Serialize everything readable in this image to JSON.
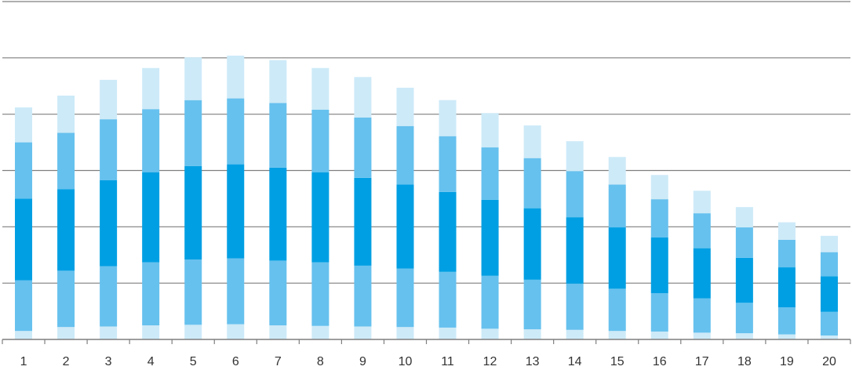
{
  "chart_data": {
    "type": "bar",
    "stacked": true,
    "categories": [
      "1",
      "2",
      "3",
      "4",
      "5",
      "6",
      "7",
      "8",
      "9",
      "10",
      "11",
      "12",
      "13",
      "14",
      "15",
      "16",
      "17",
      "18",
      "19",
      "20"
    ],
    "ylim": [
      0,
      6
    ],
    "grid": true,
    "series": [
      {
        "values": [
          0.15,
          0.22,
          0.23,
          0.25,
          0.26,
          0.27,
          0.25,
          0.24,
          0.23,
          0.22,
          0.21,
          0.19,
          0.18,
          0.17,
          0.15,
          0.14,
          0.12,
          0.11,
          0.09,
          0.07
        ],
        "color": "#cdeaf8"
      },
      {
        "values": [
          0.9,
          1.0,
          1.07,
          1.12,
          1.16,
          1.17,
          1.15,
          1.13,
          1.08,
          1.04,
          0.99,
          0.94,
          0.88,
          0.82,
          0.75,
          0.68,
          0.61,
          0.54,
          0.48,
          0.42
        ],
        "color": "#66c1ee"
      },
      {
        "values": [
          1.45,
          1.45,
          1.53,
          1.6,
          1.66,
          1.67,
          1.65,
          1.6,
          1.56,
          1.49,
          1.42,
          1.35,
          1.27,
          1.18,
          1.09,
          0.99,
          0.89,
          0.8,
          0.71,
          0.63
        ],
        "color": "#009fe3"
      },
      {
        "values": [
          1.0,
          1.0,
          1.08,
          1.12,
          1.17,
          1.17,
          1.15,
          1.11,
          1.07,
          1.04,
          0.99,
          0.93,
          0.89,
          0.82,
          0.76,
          0.68,
          0.62,
          0.54,
          0.49,
          0.43
        ],
        "color": "#66c1ee"
      },
      {
        "values": [
          0.62,
          0.66,
          0.7,
          0.73,
          0.76,
          0.76,
          0.76,
          0.74,
          0.72,
          0.68,
          0.64,
          0.61,
          0.58,
          0.53,
          0.49,
          0.43,
          0.4,
          0.36,
          0.31,
          0.29
        ],
        "color": "#cdeaf8"
      }
    ]
  }
}
